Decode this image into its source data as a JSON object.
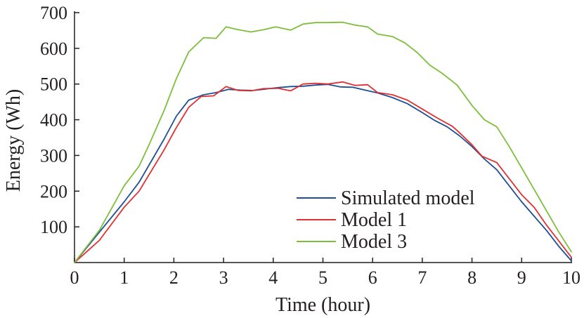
{
  "chart_data": {
    "type": "line",
    "title": "",
    "xlabel": "Time (hour)",
    "ylabel": "Energy (Wh)",
    "xlim": [
      0,
      10
    ],
    "ylim": [
      0,
      700
    ],
    "xticks": [
      0,
      1,
      2,
      3,
      4,
      5,
      6,
      7,
      8,
      9,
      10
    ],
    "yticks": [
      100,
      200,
      300,
      400,
      500,
      600,
      700
    ],
    "grid": false,
    "legend_position": "bottom-right",
    "series": [
      {
        "name": "Simulated model",
        "color": "#1f4e96",
        "x": [
          0,
          0.5,
          1,
          1.3,
          1.8,
          2.05,
          2.3,
          2.6,
          2.85,
          3.1,
          3.35,
          3.6,
          3.85,
          4.1,
          4.35,
          4.6,
          4.85,
          5.1,
          5.35,
          5.6,
          5.85,
          6.1,
          6.4,
          6.7,
          7.0,
          7.25,
          7.5,
          7.75,
          8.0,
          8.25,
          8.5,
          8.75,
          9.0,
          9.25,
          9.5,
          9.75,
          10.0
        ],
        "y": [
          0,
          85,
          170,
          225,
          345,
          410,
          455,
          470,
          476,
          485,
          483,
          482,
          486,
          490,
          493,
          494,
          497,
          499,
          492,
          491,
          483,
          475,
          462,
          445,
          420,
          398,
          380,
          355,
          325,
          290,
          260,
          215,
          170,
          130,
          90,
          45,
          5
        ]
      },
      {
        "name": "Model 1",
        "color": "#e03030",
        "x": [
          0,
          0.5,
          1,
          1.3,
          1.8,
          2.05,
          2.3,
          2.55,
          2.8,
          3.05,
          3.3,
          3.55,
          3.8,
          4.1,
          4.35,
          4.6,
          4.85,
          5.1,
          5.4,
          5.65,
          5.9,
          6.1,
          6.4,
          6.7,
          7.0,
          7.3,
          7.6,
          7.7,
          8.0,
          8.2,
          8.5,
          8.75,
          9.0,
          9.25,
          9.5,
          9.75,
          10.0
        ],
        "y": [
          0,
          62,
          155,
          200,
          315,
          378,
          435,
          465,
          467,
          493,
          482,
          481,
          487,
          488,
          481,
          500,
          502,
          500,
          506,
          496,
          498,
          476,
          470,
          455,
          430,
          405,
          382,
          370,
          330,
          298,
          280,
          235,
          190,
          155,
          105,
          60,
          15
        ]
      },
      {
        "name": "Model 3",
        "color": "#7dbf3a",
        "x": [
          0,
          0.5,
          1,
          1.3,
          1.5,
          1.8,
          2.05,
          2.3,
          2.6,
          2.85,
          3.05,
          3.3,
          3.55,
          3.8,
          4.05,
          4.35,
          4.6,
          4.85,
          5.1,
          5.4,
          5.65,
          5.9,
          6.1,
          6.4,
          6.65,
          6.9,
          7.15,
          7.4,
          7.7,
          8.0,
          8.25,
          8.5,
          8.75,
          9.0,
          9.25,
          9.5,
          9.75,
          10.0
        ],
        "y": [
          0,
          90,
          215,
          270,
          330,
          425,
          515,
          590,
          630,
          628,
          660,
          652,
          646,
          652,
          660,
          651,
          668,
          672,
          672,
          673,
          665,
          660,
          640,
          633,
          615,
          588,
          553,
          530,
          497,
          440,
          400,
          380,
          325,
          265,
          205,
          145,
          85,
          30
        ]
      }
    ]
  }
}
